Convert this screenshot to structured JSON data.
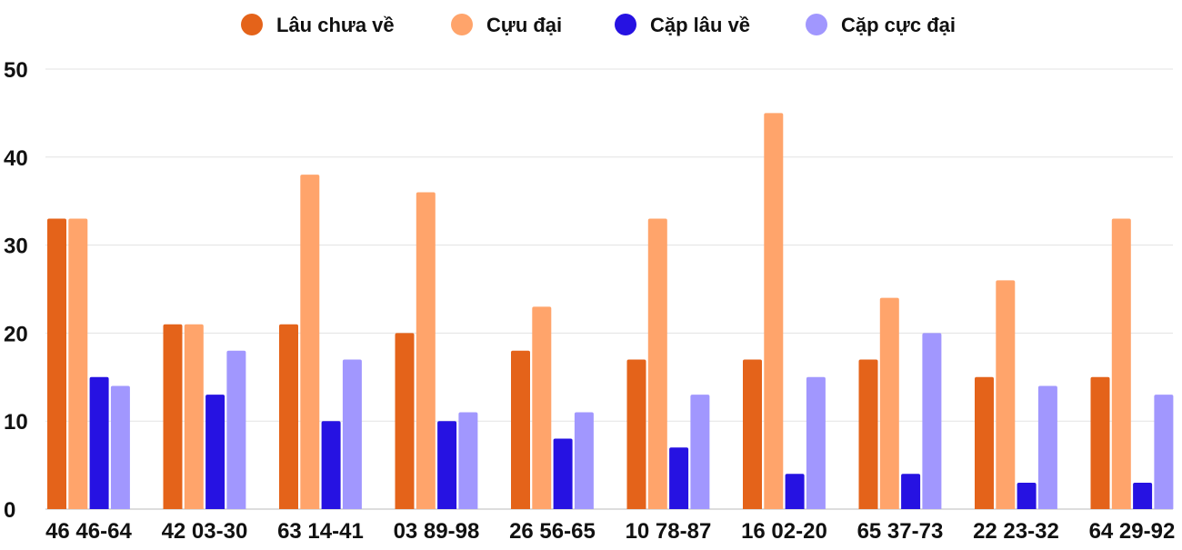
{
  "chart_data": {
    "type": "bar",
    "title": "",
    "xlabel": "",
    "ylabel": "",
    "ylim": [
      0,
      50
    ],
    "yticks": [
      0,
      10,
      20,
      30,
      40,
      50
    ],
    "grid": true,
    "legend_position": "top",
    "categories": [
      "46 46-64",
      "42 03-30",
      "63 14-41",
      "03 89-98",
      "26 56-65",
      "10 78-87",
      "16 02-20",
      "65 37-73",
      "22 23-32",
      "64 29-92"
    ],
    "series": [
      {
        "name": "Lâu chưa về",
        "color": "#E4631A",
        "values": [
          33,
          21,
          21,
          20,
          18,
          17,
          17,
          17,
          15,
          15
        ]
      },
      {
        "name": "Cựu đại",
        "color": "#FFA46B",
        "values": [
          33,
          21,
          38,
          36,
          23,
          33,
          45,
          24,
          26,
          33
        ]
      },
      {
        "name": "Cặp lâu về",
        "color": "#2612E2",
        "values": [
          15,
          13,
          10,
          10,
          8,
          7,
          4,
          4,
          3,
          3
        ]
      },
      {
        "name": "Cặp cực đại",
        "color": "#A197FE",
        "values": [
          14,
          18,
          17,
          11,
          11,
          13,
          15,
          20,
          14,
          13
        ]
      }
    ]
  }
}
